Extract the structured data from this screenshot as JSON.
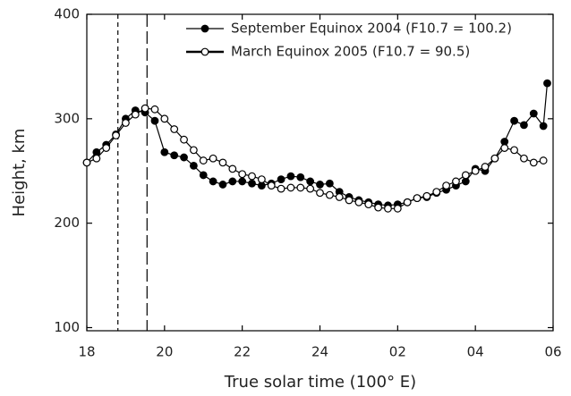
{
  "chart_data": {
    "type": "line",
    "x_label": "True solar time (100° E)",
    "y_label": "Height, km",
    "xlim": [
      18,
      30
    ],
    "xticks": [
      18,
      20,
      22,
      24,
      {
        "value": 26,
        "label": "02"
      },
      {
        "value": 28,
        "label": "04"
      },
      {
        "value": 30,
        "label": "06"
      }
    ],
    "ylim": [
      97,
      400
    ],
    "yticks": [
      100,
      200,
      300,
      400
    ],
    "legend": "top-right",
    "vlines": [
      18.8,
      19.55
    ],
    "series": [
      {
        "name": "September Equinox 2004 (F10.7 = 100.2)",
        "color": "#000000",
        "marker": "filled",
        "x": [
          18,
          18.25,
          18.5,
          18.75,
          19,
          19.25,
          19.5,
          19.75,
          20,
          20.25,
          20.5,
          20.75,
          21,
          21.25,
          21.5,
          21.75,
          22,
          22.25,
          22.5,
          22.75,
          23,
          23.25,
          23.5,
          23.75,
          24,
          24.25,
          24.5,
          24.75,
          25,
          25.25,
          25.5,
          25.75,
          26,
          26.25,
          26.5,
          26.75,
          27,
          27.25,
          27.5,
          27.75,
          28,
          28.25,
          28.5,
          28.75,
          29,
          29.25,
          29.5,
          29.75,
          29.85
        ],
        "values": [
          258,
          268,
          275,
          285,
          300,
          308,
          306,
          298,
          268,
          265,
          263,
          255,
          246,
          240,
          237,
          240,
          240,
          238,
          236,
          238,
          242,
          245,
          244,
          240,
          237,
          238,
          230,
          225,
          222,
          220,
          218,
          217,
          218,
          220,
          224,
          225,
          229,
          232,
          236,
          240,
          252,
          250,
          262,
          278,
          298,
          294,
          305,
          293,
          334
        ]
      },
      {
        "name": "March Equinox 2005 (F10.7 = 90.5)",
        "color": "#000000",
        "marker": "open",
        "x": [
          18,
          18.25,
          18.5,
          18.75,
          19,
          19.25,
          19.5,
          19.75,
          20,
          20.25,
          20.5,
          20.75,
          21,
          21.25,
          21.5,
          21.75,
          22,
          22.25,
          22.5,
          22.75,
          23,
          23.25,
          23.5,
          23.75,
          24,
          24.25,
          24.5,
          24.75,
          25,
          25.25,
          25.5,
          25.75,
          26,
          26.25,
          26.5,
          26.75,
          27,
          27.25,
          27.5,
          27.75,
          28,
          28.25,
          28.5,
          28.75,
          29,
          29.25,
          29.5,
          29.75
        ],
        "values": [
          258,
          262,
          272,
          284,
          296,
          304,
          310,
          309,
          300,
          290,
          280,
          270,
          260,
          262,
          258,
          252,
          247,
          245,
          242,
          236,
          233,
          234,
          234,
          233,
          229,
          227,
          225,
          222,
          220,
          218,
          215,
          214,
          214,
          220,
          224,
          226,
          230,
          236,
          240,
          246,
          250,
          254,
          262,
          272,
          270,
          262,
          258,
          260
        ]
      }
    ]
  }
}
